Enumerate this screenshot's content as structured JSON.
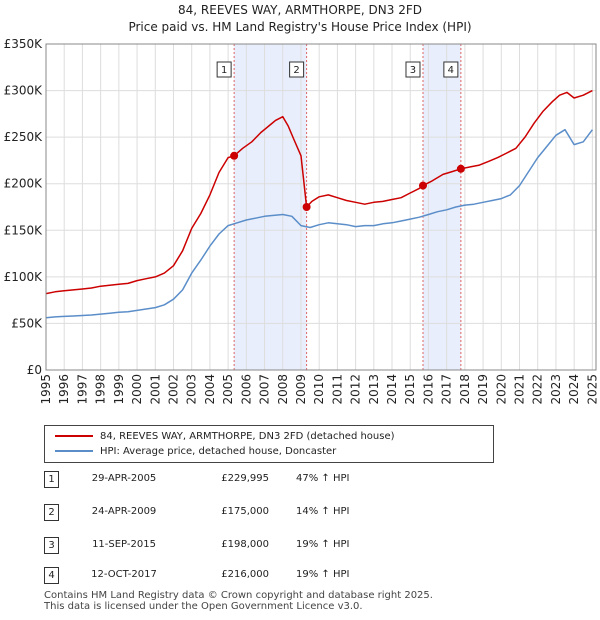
{
  "title_line1": "84, REEVES WAY, ARMTHORPE, DN3 2FD",
  "title_line2": "Price paid vs. HM Land Registry's House Price Index (HPI)",
  "chart_data": {
    "type": "line",
    "title": "84, REEVES WAY, ARMTHORPE, DN3 2FD — Price paid vs. HM Land Registry's House Price Index (HPI)",
    "xlim": [
      1995,
      2025.2
    ],
    "ylim": [
      0,
      350000
    ],
    "y_ticks": [
      0,
      50000,
      100000,
      150000,
      200000,
      250000,
      300000,
      350000
    ],
    "y_tick_labels": [
      "£0",
      "£50K",
      "£100K",
      "£150K",
      "£200K",
      "£250K",
      "£300K",
      "£350K"
    ],
    "x_ticks": [
      "1995",
      "1996",
      "1997",
      "1998",
      "1999",
      "2000",
      "2001",
      "2002",
      "2003",
      "2004",
      "2005",
      "2006",
      "2007",
      "2008",
      "2009",
      "2010",
      "2011",
      "2012",
      "2013",
      "2014",
      "2015",
      "2016",
      "2017",
      "2018",
      "2019",
      "2020",
      "2021",
      "2022",
      "2023",
      "2024",
      "2025"
    ],
    "grid": true,
    "series": [
      {
        "name": "84, REEVES WAY, ARMTHORPE, DN3 2FD (detached house)",
        "color": "#cc0000",
        "x": [
          1995.0,
          1995.5,
          1996.0,
          1996.5,
          1997.0,
          1997.5,
          1998.0,
          1998.5,
          1999.0,
          1999.5,
          2000.0,
          2000.5,
          2001.0,
          2001.5,
          2002.0,
          2002.5,
          2003.0,
          2003.5,
          2004.0,
          2004.5,
          2005.0,
          2005.33,
          2005.8,
          2006.3,
          2006.8,
          2007.3,
          2007.6,
          2008.0,
          2008.3,
          2008.6,
          2009.0,
          2009.31,
          2009.6,
          2010.0,
          2010.5,
          2011.0,
          2011.5,
          2012.0,
          2012.5,
          2013.0,
          2013.5,
          2014.0,
          2014.5,
          2015.0,
          2015.5,
          2015.7,
          2016.2,
          2016.8,
          2017.3,
          2017.78,
          2018.3,
          2018.8,
          2019.3,
          2019.8,
          2020.3,
          2020.8,
          2021.3,
          2021.8,
          2022.3,
          2022.8,
          2023.2,
          2023.6,
          2024.0,
          2024.5,
          2025.0
        ],
        "values": [
          82000,
          84000,
          85000,
          86000,
          87000,
          88000,
          90000,
          91000,
          92000,
          93000,
          96000,
          98000,
          100000,
          104000,
          112000,
          128000,
          152000,
          168000,
          188000,
          212000,
          228000,
          229995,
          238000,
          245000,
          255000,
          263000,
          268000,
          272000,
          262000,
          248000,
          230000,
          175000,
          181000,
          186000,
          188000,
          185000,
          182000,
          180000,
          178000,
          180000,
          181000,
          183000,
          185000,
          190000,
          195000,
          198000,
          203000,
          210000,
          213000,
          216000,
          218000,
          220000,
          224000,
          228000,
          233000,
          238000,
          250000,
          265000,
          278000,
          288000,
          295000,
          298000,
          292000,
          295000,
          300000
        ]
      },
      {
        "name": "HPI: Average price, detached house, Doncaster",
        "color": "#5b8ec9",
        "x": [
          1995.0,
          1995.5,
          1996.0,
          1996.5,
          1997.0,
          1997.5,
          1998.0,
          1998.5,
          1999.0,
          1999.5,
          2000.0,
          2000.5,
          2001.0,
          2001.5,
          2002.0,
          2002.5,
          2003.0,
          2003.5,
          2004.0,
          2004.5,
          2005.0,
          2005.5,
          2006.0,
          2006.5,
          2007.0,
          2007.5,
          2008.0,
          2008.5,
          2009.0,
          2009.5,
          2010.0,
          2010.5,
          2011.0,
          2011.5,
          2012.0,
          2012.5,
          2013.0,
          2013.5,
          2014.0,
          2014.5,
          2015.0,
          2015.5,
          2016.0,
          2016.5,
          2017.0,
          2017.5,
          2018.0,
          2018.5,
          2019.0,
          2019.5,
          2020.0,
          2020.5,
          2021.0,
          2021.5,
          2022.0,
          2022.5,
          2023.0,
          2023.5,
          2024.0,
          2024.5,
          2025.0
        ],
        "values": [
          56000,
          57000,
          57500,
          58000,
          58500,
          59000,
          60000,
          61000,
          62000,
          62500,
          64000,
          65500,
          67000,
          70000,
          76000,
          86000,
          104000,
          118000,
          133000,
          146000,
          155000,
          158000,
          161000,
          163000,
          165000,
          166000,
          167000,
          165000,
          155000,
          153000,
          156000,
          158000,
          157000,
          156000,
          154000,
          155000,
          155000,
          157000,
          158000,
          160000,
          162000,
          164000,
          167000,
          170000,
          172000,
          175000,
          177000,
          178000,
          180000,
          182000,
          184000,
          188000,
          198000,
          213000,
          228000,
          240000,
          252000,
          258000,
          242000,
          245000,
          258000
        ]
      }
    ],
    "sales": [
      {
        "label": "1",
        "date": "29-APR-2005",
        "x": 2005.33,
        "price": 229995,
        "price_text": "£229,995",
        "hpi_text": "47% ↑ HPI"
      },
      {
        "label": "2",
        "date": "24-APR-2009",
        "x": 2009.31,
        "price": 175000,
        "price_text": "£175,000",
        "hpi_text": "14% ↑ HPI"
      },
      {
        "label": "3",
        "date": "11-SEP-2015",
        "x": 2015.7,
        "price": 198000,
        "price_text": "£198,000",
        "hpi_text": "19% ↑ HPI"
      },
      {
        "label": "4",
        "date": "12-OCT-2017",
        "x": 2017.78,
        "price": 216000,
        "price_text": "£216,000",
        "hpi_text": "19% ↑ HPI"
      }
    ],
    "shaded_ranges": [
      [
        "1",
        "2"
      ],
      [
        "3",
        "4"
      ]
    ],
    "legend_position": "below-chart"
  },
  "legend": {
    "item1": "84, REEVES WAY, ARMTHORPE, DN3 2FD (detached house)",
    "item2": "HPI: Average price, detached house, Doncaster"
  },
  "colors": {
    "property_line": "#cc0000",
    "hpi_line": "#5b8ec9",
    "shade": "#e8eefb",
    "grid": "#dddddd",
    "vline": "#dd6666"
  },
  "footer_line1": "Contains HM Land Registry data © Crown copyright and database right 2025.",
  "footer_line2": "This data is licensed under the Open Government Licence v3.0."
}
